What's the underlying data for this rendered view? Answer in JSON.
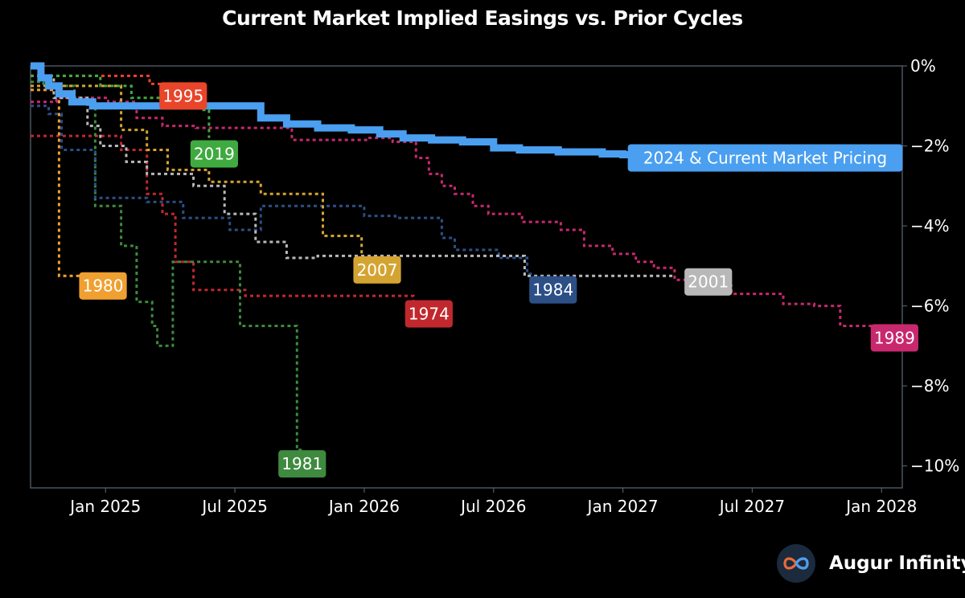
{
  "chart_data": {
    "type": "line",
    "title": "Current Market Implied Easings vs. Prior Cycles",
    "xlabel": "",
    "ylabel": "",
    "xlim": [
      2024.71,
      2028.08
    ],
    "ylim": [
      -10.55,
      0.0
    ],
    "x_ticks": [
      {
        "value": 2025.0,
        "label": "Jan 2025"
      },
      {
        "value": 2025.5,
        "label": "Jul 2025"
      },
      {
        "value": 2026.0,
        "label": "Jan 2026"
      },
      {
        "value": 2026.5,
        "label": "Jul 2026"
      },
      {
        "value": 2027.0,
        "label": "Jan 2027"
      },
      {
        "value": 2027.5,
        "label": "Jul 2027"
      },
      {
        "value": 2028.0,
        "label": "Jan 2028"
      }
    ],
    "y_ticks": [
      {
        "value": 0,
        "label": "0%"
      },
      {
        "value": -2,
        "label": "−2%"
      },
      {
        "value": -4,
        "label": "−4%"
      },
      {
        "value": -6,
        "label": "−6%"
      },
      {
        "value": -8,
        "label": "−8%"
      },
      {
        "value": -10,
        "label": "−10%"
      }
    ],
    "series": [
      {
        "name": "1974",
        "color": "#c0282d",
        "label": "1974",
        "label_at": [
          2026.25,
          -6.2
        ],
        "x": [
          2024.71,
          2024.78,
          2024.87,
          2024.92,
          2024.96,
          2025.06,
          2025.12,
          2025.16,
          2025.22,
          2025.27,
          2025.34,
          2025.54,
          2026.19
        ],
        "y": [
          -1.75,
          -1.75,
          -1.75,
          -1.75,
          -1.75,
          -2.1,
          -2.1,
          -3.2,
          -3.7,
          -4.9,
          -5.6,
          -5.75,
          -6.2
        ]
      },
      {
        "name": "1980",
        "color": "#f0a030",
        "label": "1980",
        "label_at": [
          2024.99,
          -5.5
        ],
        "x": [
          2024.71,
          2024.73,
          2024.77,
          2024.82,
          2024.85,
          2024.88,
          2024.95,
          2024.96,
          2025.0
        ],
        "y": [
          -0.6,
          -0.6,
          -0.6,
          -5.25,
          -5.25,
          -5.25,
          -5.25,
          -5.25,
          -5.25
        ]
      },
      {
        "name": "1981",
        "color": "#3e8a3e",
        "label": "1981",
        "label_at": [
          2025.76,
          -9.95
        ],
        "x": [
          2024.71,
          2024.76,
          2024.88,
          2024.92,
          2024.96,
          2025.03,
          2025.06,
          2025.1,
          2025.12,
          2025.18,
          2025.2,
          2025.23,
          2025.26,
          2025.33,
          2025.46,
          2025.52,
          2025.64,
          2025.74,
          2025.76
        ],
        "y": [
          -0.4,
          -0.5,
          -0.9,
          -0.9,
          -3.5,
          -3.5,
          -4.5,
          -4.5,
          -5.9,
          -6.5,
          -7.0,
          -7.0,
          -4.9,
          -4.9,
          -4.9,
          -6.5,
          -6.5,
          -9.6,
          -9.6
        ]
      },
      {
        "name": "1984",
        "color": "#2c4f86",
        "label": "1984",
        "label_at": [
          2026.73,
          -5.6
        ],
        "x": [
          2024.71,
          2024.78,
          2024.83,
          2024.96,
          2025.05,
          2025.16,
          2025.3,
          2025.48,
          2025.6,
          2025.8,
          2026.0,
          2026.12,
          2026.3,
          2026.35,
          2026.52,
          2026.63,
          2026.66
        ],
        "y": [
          -1.0,
          -1.2,
          -2.1,
          -3.3,
          -3.3,
          -3.4,
          -3.8,
          -4.1,
          -3.5,
          -3.5,
          -3.75,
          -3.8,
          -4.3,
          -4.6,
          -4.8,
          -5.2,
          -5.2
        ]
      },
      {
        "name": "1989",
        "color": "#c8286e",
        "label": "1989",
        "label_at": [
          2028.05,
          -6.8
        ],
        "x": [
          2024.71,
          2024.81,
          2024.86,
          2025.01,
          2025.12,
          2025.22,
          2025.35,
          2025.53,
          2025.72,
          2025.85,
          2026.02,
          2026.11,
          2026.2,
          2026.25,
          2026.3,
          2026.35,
          2026.42,
          2026.48,
          2026.61,
          2026.76,
          2026.85,
          2026.96,
          2027.05,
          2027.12,
          2027.2,
          2027.29,
          2027.42,
          2027.62,
          2027.74,
          2027.84,
          2028.0
        ],
        "y": [
          -0.9,
          -0.8,
          -0.8,
          -0.9,
          -1.3,
          -1.5,
          -1.55,
          -1.55,
          -1.85,
          -1.85,
          -1.8,
          -1.9,
          -2.3,
          -2.7,
          -3.0,
          -3.2,
          -3.5,
          -3.7,
          -3.9,
          -4.1,
          -4.5,
          -4.7,
          -4.9,
          -5.05,
          -5.35,
          -5.5,
          -5.7,
          -5.95,
          -6.0,
          -6.5,
          -6.7
        ]
      },
      {
        "name": "1995",
        "color": "#e8452a",
        "label": "1995",
        "label_at": [
          2025.3,
          -0.75
        ],
        "x": [
          2024.71,
          2024.9,
          2025.17,
          2025.28
        ],
        "y": [
          -0.25,
          -0.25,
          -0.45,
          -0.45
        ]
      },
      {
        "name": "2001",
        "color": "#b8b8b8",
        "label": "2001",
        "label_at": [
          2027.33,
          -5.4
        ],
        "x": [
          2024.71,
          2024.8,
          2024.93,
          2024.98,
          2025.08,
          2025.16,
          2025.34,
          2025.46,
          2025.58,
          2025.7,
          2025.82,
          2026.1,
          2026.4,
          2026.62,
          2026.72,
          2027.2
        ],
        "y": [
          -0.25,
          -0.8,
          -1.5,
          -2.0,
          -2.4,
          -2.7,
          -3.0,
          -3.7,
          -4.4,
          -4.8,
          -4.75,
          -4.75,
          -4.75,
          -5.25,
          -5.25,
          -5.25
        ]
      },
      {
        "name": "2007",
        "color": "#d4a432",
        "label": "2007",
        "label_at": [
          2026.05,
          -5.1
        ],
        "x": [
          2024.71,
          2024.95,
          2025.0,
          2025.06,
          2025.16,
          2025.24,
          2025.4,
          2025.6,
          2025.84,
          2025.92,
          2025.99
        ],
        "y": [
          -0.5,
          -0.5,
          -0.5,
          -1.6,
          -2.1,
          -2.6,
          -2.9,
          -3.2,
          -4.25,
          -4.25,
          -4.8
        ]
      },
      {
        "name": "2019",
        "color": "#3faa3f",
        "label": "2019",
        "label_at": [
          2025.42,
          -2.2
        ],
        "x": [
          2024.71,
          2024.78,
          2024.98,
          2025.1,
          2025.18,
          2025.24,
          2025.37,
          2025.4
        ],
        "y": [
          -0.25,
          -0.25,
          -0.5,
          -0.8,
          -0.8,
          -0.8,
          -1.1,
          -1.8
        ]
      },
      {
        "name": "2024 & Current Market Pricing",
        "color": "#4a9ff0",
        "label": "2024 & Current Market Pricing",
        "label_at": [
          2027.55,
          -2.3
        ],
        "x": [
          2024.71,
          2024.75,
          2024.78,
          2024.82,
          2024.87,
          2024.95,
          2025.04,
          2025.2,
          2025.5,
          2025.6,
          2025.7,
          2025.82,
          2025.95,
          2026.06,
          2026.15,
          2026.26,
          2026.38,
          2026.5,
          2026.6,
          2026.75,
          2026.92,
          2027.0,
          2027.1
        ],
        "y": [
          0.0,
          -0.3,
          -0.5,
          -0.7,
          -0.9,
          -1.0,
          -1.0,
          -1.0,
          -1.0,
          -1.3,
          -1.45,
          -1.55,
          -1.6,
          -1.7,
          -1.8,
          -1.85,
          -1.9,
          -2.05,
          -2.1,
          -2.15,
          -2.2,
          -2.22,
          -2.25
        ]
      }
    ]
  },
  "brand": {
    "name": "Augur Infinity",
    "logo_icon": "infinity-icon",
    "logo_color": "#1a5fa0"
  }
}
